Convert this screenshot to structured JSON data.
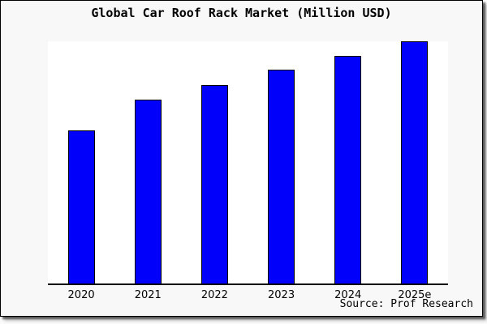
{
  "chart_data": {
    "type": "bar",
    "title": "Global Car Roof Rack Market (Million USD)",
    "categories": [
      "2020",
      "2021",
      "2022",
      "2023",
      "2024",
      "2025e"
    ],
    "series": [
      {
        "name": "Market size (relative, % of tallest bar; no y-axis scale shown)",
        "values_pct_of_max": [
          63.3,
          76.0,
          82.0,
          88.3,
          94.0,
          100.0
        ]
      }
    ],
    "xlabel": "",
    "ylabel": "",
    "y_axis_ticks_visible": false,
    "grid": false,
    "legend_position": "none",
    "bar_color": "#0000fb",
    "bar_edge_color": "#000000",
    "plot_background": "#ffffff",
    "panel_background": "#f8f8f8",
    "source_note": "Source: Prof Research"
  }
}
